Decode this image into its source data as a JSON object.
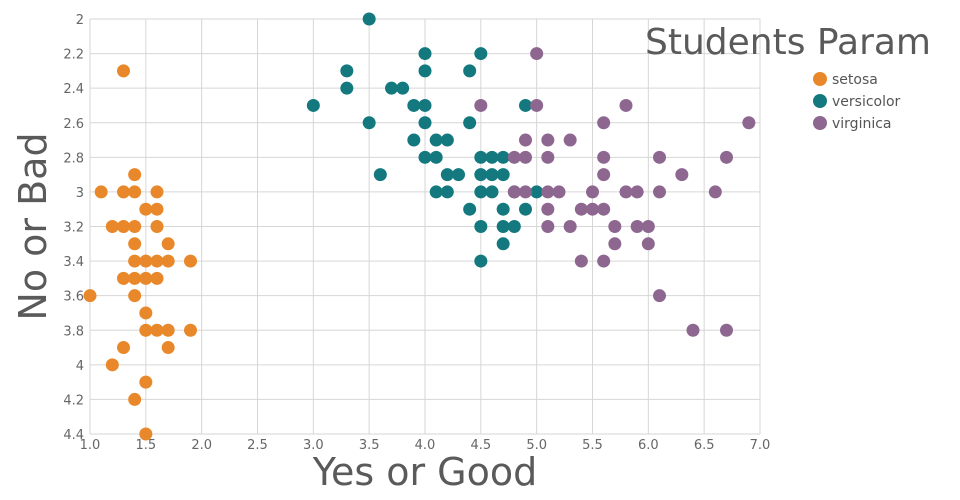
{
  "chart_data": {
    "type": "scatter",
    "title": "Students Param",
    "xlabel": "Yes or Good",
    "ylabel": "No or Bad",
    "xlim": [
      1.0,
      7.0
    ],
    "ylim": [
      2.0,
      4.4
    ],
    "y_inverted": true,
    "xticks": [
      "1.0",
      "1.5",
      "2.0",
      "2.5",
      "3.0",
      "3.5",
      "4.0",
      "4.5",
      "5.0",
      "5.5",
      "6.0",
      "6.5",
      "7.0"
    ],
    "yticks": [
      "2",
      "2.2",
      "2.4",
      "2.6",
      "2.8",
      "3",
      "3.2",
      "3.4",
      "3.6",
      "3.8",
      "4",
      "4.2",
      "4.4"
    ],
    "grid": true,
    "legend_position": "top-right",
    "series": [
      {
        "name": "setosa",
        "color": "#e8882a",
        "points": [
          [
            1.3,
            2.3
          ],
          [
            1.4,
            2.9
          ],
          [
            1.1,
            3.0
          ],
          [
            1.3,
            3.0
          ],
          [
            1.4,
            3.0
          ],
          [
            1.6,
            3.0
          ],
          [
            1.5,
            3.1
          ],
          [
            1.6,
            3.1
          ],
          [
            1.2,
            3.2
          ],
          [
            1.3,
            3.2
          ],
          [
            1.4,
            3.2
          ],
          [
            1.6,
            3.2
          ],
          [
            1.4,
            3.3
          ],
          [
            1.7,
            3.3
          ],
          [
            1.4,
            3.4
          ],
          [
            1.5,
            3.4
          ],
          [
            1.6,
            3.4
          ],
          [
            1.7,
            3.4
          ],
          [
            1.9,
            3.4
          ],
          [
            1.3,
            3.5
          ],
          [
            1.4,
            3.5
          ],
          [
            1.5,
            3.5
          ],
          [
            1.6,
            3.5
          ],
          [
            1.0,
            3.6
          ],
          [
            1.4,
            3.6
          ],
          [
            1.5,
            3.7
          ],
          [
            1.5,
            3.8
          ],
          [
            1.6,
            3.8
          ],
          [
            1.7,
            3.8
          ],
          [
            1.9,
            3.8
          ],
          [
            1.3,
            3.9
          ],
          [
            1.7,
            3.9
          ],
          [
            1.2,
            4.0
          ],
          [
            1.5,
            4.1
          ],
          [
            1.4,
            4.2
          ],
          [
            1.5,
            4.4
          ]
        ]
      },
      {
        "name": "versicolor",
        "color": "#14797e",
        "points": [
          [
            3.5,
            2.0
          ],
          [
            4.0,
            2.2
          ],
          [
            4.5,
            2.2
          ],
          [
            3.3,
            2.3
          ],
          [
            4.0,
            2.3
          ],
          [
            4.4,
            2.3
          ],
          [
            3.3,
            2.4
          ],
          [
            3.7,
            2.4
          ],
          [
            3.8,
            2.4
          ],
          [
            3.0,
            2.5
          ],
          [
            3.9,
            2.5
          ],
          [
            4.0,
            2.5
          ],
          [
            4.9,
            2.5
          ],
          [
            3.5,
            2.6
          ],
          [
            4.0,
            2.6
          ],
          [
            4.4,
            2.6
          ],
          [
            3.9,
            2.7
          ],
          [
            4.1,
            2.7
          ],
          [
            4.2,
            2.7
          ],
          [
            4.0,
            2.8
          ],
          [
            4.1,
            2.8
          ],
          [
            4.5,
            2.8
          ],
          [
            4.6,
            2.8
          ],
          [
            4.7,
            2.8
          ],
          [
            3.6,
            2.9
          ],
          [
            4.2,
            2.9
          ],
          [
            4.3,
            2.9
          ],
          [
            4.5,
            2.9
          ],
          [
            4.6,
            2.9
          ],
          [
            4.7,
            2.9
          ],
          [
            4.1,
            3.0
          ],
          [
            4.2,
            3.0
          ],
          [
            4.5,
            3.0
          ],
          [
            4.6,
            3.0
          ],
          [
            4.8,
            3.0
          ],
          [
            5.0,
            3.0
          ],
          [
            4.4,
            3.1
          ],
          [
            4.7,
            3.1
          ],
          [
            4.9,
            3.1
          ],
          [
            4.5,
            3.2
          ],
          [
            4.7,
            3.2
          ],
          [
            4.8,
            3.2
          ],
          [
            4.7,
            3.3
          ],
          [
            4.5,
            3.4
          ]
        ]
      },
      {
        "name": "virginica",
        "color": "#8e6790",
        "points": [
          [
            5.0,
            2.2
          ],
          [
            4.5,
            2.5
          ],
          [
            5.0,
            2.5
          ],
          [
            5.8,
            2.5
          ],
          [
            5.6,
            2.6
          ],
          [
            6.9,
            2.6
          ],
          [
            4.9,
            2.7
          ],
          [
            5.1,
            2.7
          ],
          [
            5.3,
            2.7
          ],
          [
            4.8,
            2.8
          ],
          [
            4.9,
            2.8
          ],
          [
            5.1,
            2.8
          ],
          [
            5.6,
            2.8
          ],
          [
            6.1,
            2.8
          ],
          [
            6.7,
            2.8
          ],
          [
            5.6,
            2.9
          ],
          [
            6.3,
            2.9
          ],
          [
            4.8,
            3.0
          ],
          [
            4.9,
            3.0
          ],
          [
            5.1,
            3.0
          ],
          [
            5.2,
            3.0
          ],
          [
            5.5,
            3.0
          ],
          [
            5.8,
            3.0
          ],
          [
            5.9,
            3.0
          ],
          [
            6.1,
            3.0
          ],
          [
            6.6,
            3.0
          ],
          [
            5.1,
            3.1
          ],
          [
            5.4,
            3.1
          ],
          [
            5.5,
            3.1
          ],
          [
            5.6,
            3.1
          ],
          [
            5.1,
            3.2
          ],
          [
            5.3,
            3.2
          ],
          [
            5.7,
            3.2
          ],
          [
            5.9,
            3.2
          ],
          [
            6.0,
            3.2
          ],
          [
            5.7,
            3.3
          ],
          [
            6.0,
            3.3
          ],
          [
            5.4,
            3.4
          ],
          [
            5.6,
            3.4
          ],
          [
            6.1,
            3.6
          ],
          [
            6.4,
            3.8
          ],
          [
            6.7,
            3.8
          ]
        ]
      }
    ]
  }
}
